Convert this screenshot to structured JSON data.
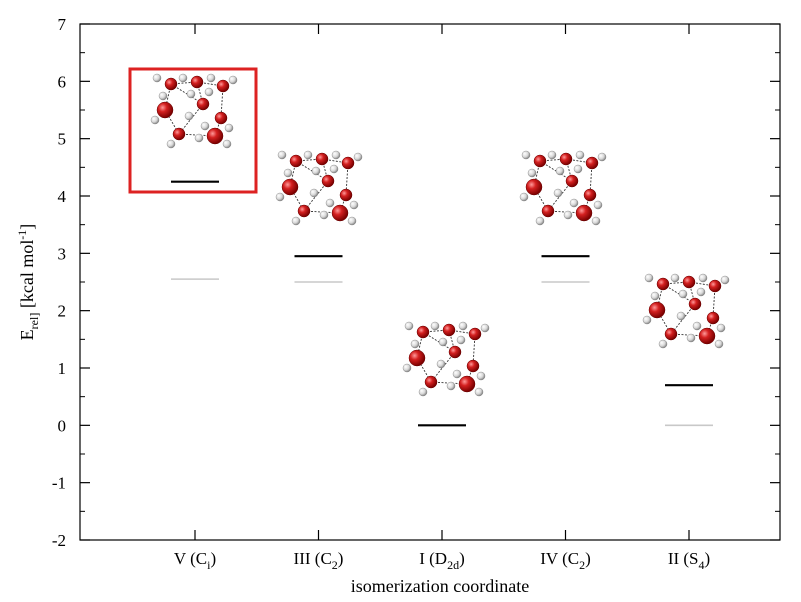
{
  "chart_data": {
    "type": "scatter",
    "title": "",
    "ylabel": {
      "main": "E",
      "sub": "rel]",
      "rest": " [kcal mol",
      "sup": "-1",
      "end": "]"
    },
    "xlabel": "isomerization coordinate",
    "ylim": [
      -2,
      7
    ],
    "yticks": [
      -2,
      -1,
      0,
      1,
      2,
      3,
      4,
      5,
      6,
      7
    ],
    "grid": false,
    "categories": [
      {
        "label": "V (C",
        "sub": "i",
        "end": ")"
      },
      {
        "label": "III (C",
        "sub": "2",
        "end": ")"
      },
      {
        "label": "I (D",
        "sub": "2d",
        "end": ")"
      },
      {
        "label": "IV (C",
        "sub": "2",
        "end": ")"
      },
      {
        "label": "II (S",
        "sub": "4",
        "end": ")"
      }
    ],
    "series": [
      {
        "color": "#000000",
        "values": [
          4.25,
          2.95,
          0.0,
          2.95,
          0.7
        ]
      },
      {
        "color": "#c8c8c8",
        "values": [
          2.55,
          2.5,
          null,
          2.5,
          0.0
        ]
      }
    ],
    "highlight": {
      "category_index": 0,
      "color": "#dd2222"
    },
    "molecule_colors": {
      "oxygen": "#d42020",
      "hydrogen": "#d8d8d8",
      "bond": "#333333"
    }
  }
}
